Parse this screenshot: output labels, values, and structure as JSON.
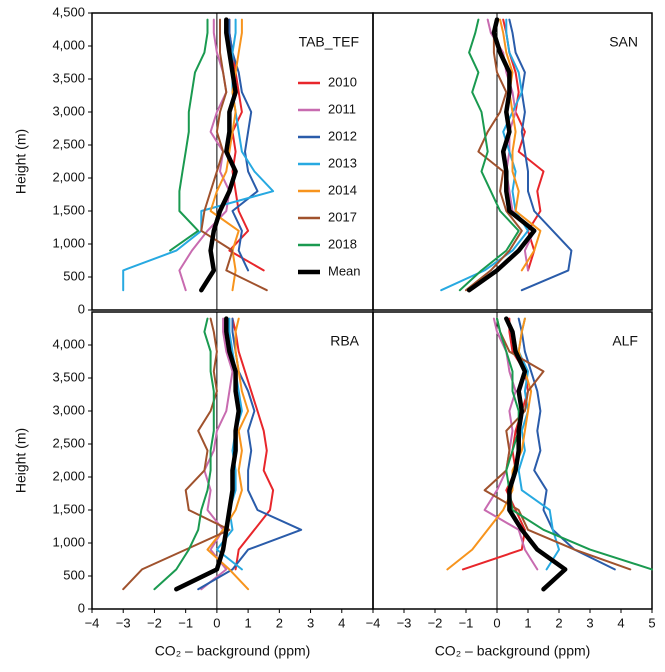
{
  "chart_data": [
    {
      "type": "line",
      "title": "TAB_TEF",
      "ylabel": "Height (m)",
      "legend": "upper right",
      "xlim": [
        -4,
        5
      ],
      "ylim": [
        0,
        4500
      ],
      "yticks": [
        0,
        500,
        {
          "value": 1000,
          "label": "1,000"
        },
        {
          "value": 1500,
          "label": "1,500"
        },
        {
          "value": 2000,
          "label": "2,000"
        },
        {
          "value": 2500,
          "label": "2,500"
        },
        {
          "value": 3000,
          "label": "3,000"
        },
        {
          "value": 3500,
          "label": "3,500"
        },
        {
          "value": 4000,
          "label": "4,000"
        },
        {
          "value": 4500,
          "label": "4,500"
        }
      ],
      "y": [
        300,
        600,
        900,
        1200,
        1500,
        1800,
        2100,
        2400,
        2700,
        3000,
        3300,
        3600,
        3900,
        4200,
        4400
      ],
      "series": [
        {
          "name": "2010",
          "color": "#e8262b",
          "values": [
            null,
            1.5,
            0.4,
            1.0,
            0.7,
            0.6,
            0.5,
            0.6,
            0.5,
            0.8,
            0.7,
            0.6,
            0.5,
            0.4,
            0.4
          ]
        },
        {
          "name": "2011",
          "color": "#c86bb0",
          "values": [
            -1.0,
            -1.2,
            -0.8,
            -0.3,
            0.3,
            0.4,
            0.1,
            0.2,
            -0.2,
            0.0,
            0.3,
            0.2,
            0.0,
            -0.1,
            -0.1
          ]
        },
        {
          "name": "2012",
          "color": "#2a5caa",
          "values": [
            null,
            1.0,
            0.7,
            0.8,
            0.5,
            1.3,
            1.0,
            0.9,
            1.0,
            1.1,
            0.8,
            0.7,
            0.5,
            0.4,
            0.4
          ]
        },
        {
          "name": "2013",
          "color": "#27a9e1",
          "values": [
            -3.0,
            -3.0,
            -1.3,
            -0.5,
            -0.5,
            1.8,
            1.2,
            0.8,
            0.7,
            0.6,
            0.5,
            0.5,
            0.5,
            0.6,
            0.6
          ]
        },
        {
          "name": "2014",
          "color": "#f7941d",
          "values": [
            0.5,
            0.6,
            0.5,
            0.7,
            -0.2,
            0.0,
            0.3,
            0.4,
            0.5,
            0.6,
            0.5,
            0.6,
            0.7,
            0.8,
            0.8
          ]
        },
        {
          "name": "2017",
          "color": "#a0522d",
          "values": [
            1.6,
            0.3,
            0.5,
            -0.5,
            -0.4,
            -0.2,
            0.0,
            0.2,
            0.0,
            0.1,
            0.3,
            0.2,
            0.1,
            0.1,
            0.1
          ]
        },
        {
          "name": "2018",
          "color": "#1a9a50",
          "values": [
            null,
            null,
            -1.5,
            -0.6,
            -1.2,
            -1.2,
            -1.1,
            -1.0,
            -0.9,
            -0.9,
            -0.8,
            -0.7,
            -0.4,
            -0.3,
            -0.3
          ]
        },
        {
          "name": "Mean",
          "color": "#000000",
          "values": [
            -0.5,
            -0.1,
            -0.2,
            -0.1,
            0.1,
            0.4,
            0.6,
            0.3,
            0.4,
            0.4,
            0.6,
            0.5,
            0.4,
            0.3,
            0.3
          ]
        }
      ]
    },
    {
      "type": "line",
      "title": "SAN",
      "xlim": [
        -4,
        5
      ],
      "ylim": [
        0,
        4500
      ],
      "y": [
        300,
        600,
        900,
        1200,
        1500,
        1800,
        2100,
        2400,
        2700,
        3000,
        3300,
        3600,
        3900,
        4200,
        4400
      ],
      "series": [
        {
          "color": "#e8262b",
          "values": [
            null,
            1.0,
            1.2,
            1.0,
            1.4,
            1.3,
            1.5,
            0.7,
            0.9,
            0.6,
            0.7,
            0.6,
            0.4,
            0.3,
            0.2
          ]
        },
        {
          "color": "#c86bb0",
          "values": [
            null,
            1.0,
            0.9,
            1.2,
            0.5,
            0.4,
            0.3,
            0.4,
            0.4,
            0.6,
            0.5,
            0.3,
            0.2,
            -0.2,
            -0.3
          ]
        },
        {
          "color": "#2a5caa",
          "values": [
            0.8,
            2.3,
            2.4,
            1.8,
            1.2,
            1.0,
            1.0,
            0.9,
            0.8,
            0.9,
            0.8,
            0.9,
            0.6,
            0.5,
            0.4
          ]
        },
        {
          "color": "#27a9e1",
          "values": [
            -1.8,
            -0.4,
            0.5,
            1.0,
            0.6,
            0.5,
            0.6,
            0.4,
            0.2,
            0.5,
            0.8,
            0.7,
            0.4,
            0.3,
            0.3
          ]
        },
        {
          "color": "#f7941d",
          "values": [
            null,
            0.8,
            1.2,
            1.4,
            0.6,
            0.7,
            0.5,
            0.5,
            0.6,
            0.5,
            0.4,
            0.5,
            0.3,
            0.2,
            0.1
          ]
        },
        {
          "color": "#a0522d",
          "values": [
            -1.0,
            -0.2,
            0.4,
            0.8,
            0.3,
            0.1,
            0.2,
            -0.6,
            -0.3,
            0.1,
            0.3,
            0.0,
            -0.1,
            -0.1,
            0.0
          ]
        },
        {
          "color": "#1a9a50",
          "values": [
            -1.2,
            -0.5,
            0.3,
            0.7,
            0.1,
            -0.2,
            -0.5,
            -0.3,
            -0.4,
            -0.5,
            -0.8,
            -0.6,
            -0.9,
            -0.7,
            -0.6
          ]
        },
        {
          "color": "#000000",
          "values": [
            -0.9,
            0.0,
            0.7,
            1.2,
            0.4,
            0.3,
            0.3,
            0.2,
            0.4,
            0.3,
            0.4,
            0.4,
            0.1,
            -0.1,
            0.0
          ]
        }
      ]
    },
    {
      "type": "line",
      "title": "RBA",
      "ylabel": "Height (m)",
      "xlabel": "CO₂ – background (ppm)",
      "xlim": [
        -4,
        5
      ],
      "ylim": [
        0,
        4500
      ],
      "xticks": [
        {
          "value": -4,
          "label": "−4"
        },
        {
          "value": -3,
          "label": "−3"
        },
        {
          "value": -2,
          "label": "−2"
        },
        {
          "value": -1,
          "label": "−1"
        },
        0,
        1,
        2,
        3,
        4
      ],
      "yticks": [
        0,
        500,
        {
          "value": 1000,
          "label": "1,000"
        },
        {
          "value": 1500,
          "label": "1,500"
        },
        {
          "value": 2000,
          "label": "2,000"
        },
        {
          "value": 2500,
          "label": "2,500"
        },
        {
          "value": 3000,
          "label": "3,000"
        },
        {
          "value": 3500,
          "label": "3,500"
        },
        {
          "value": 4000,
          "label": "4,000"
        }
      ],
      "y": [
        300,
        600,
        900,
        1200,
        1500,
        1800,
        2100,
        2400,
        2700,
        3000,
        3300,
        3600,
        3900,
        4200,
        4400
      ],
      "series": [
        {
          "color": "#e8262b",
          "values": [
            null,
            0.6,
            0.7,
            1.2,
            1.7,
            1.8,
            1.5,
            1.6,
            1.5,
            1.3,
            1.1,
            0.9,
            0.7,
            0.6,
            0.5
          ]
        },
        {
          "color": "#c86bb0",
          "values": [
            -0.5,
            0.3,
            -0.2,
            0.2,
            -0.3,
            -0.2,
            -0.4,
            -0.1,
            0.0,
            0.3,
            0.4,
            0.5,
            0.3,
            0.2,
            0.2
          ]
        },
        {
          "color": "#2a5caa",
          "values": [
            -0.6,
            0.5,
            1.0,
            2.7,
            1.3,
            1.0,
            1.0,
            1.1,
            1.0,
            1.2,
            1.0,
            0.7,
            0.6,
            0.5,
            0.5
          ]
        },
        {
          "color": "#27a9e1",
          "values": [
            null,
            0.8,
            0.0,
            0.5,
            0.4,
            0.6,
            0.6,
            0.5,
            0.6,
            0.8,
            0.7,
            0.6,
            0.5,
            0.4,
            0.4
          ]
        },
        {
          "color": "#f7941d",
          "values": [
            1.0,
            0.4,
            -0.3,
            0.2,
            0.6,
            0.8,
            0.7,
            0.8,
            0.7,
            1.0,
            0.8,
            0.7,
            0.6,
            0.6,
            0.7
          ]
        },
        {
          "color": "#a0522d",
          "values": [
            -3.0,
            -2.4,
            -1.0,
            0.4,
            -0.9,
            -1.0,
            -0.4,
            -0.3,
            -0.6,
            -0.2,
            0.0,
            -0.1,
            0.0,
            -0.1,
            -0.2
          ]
        },
        {
          "color": "#1a9a50",
          "values": [
            -2.0,
            -1.3,
            -0.9,
            -0.6,
            -0.5,
            -0.3,
            -0.2,
            -0.2,
            -0.1,
            -0.1,
            -0.1,
            -0.2,
            -0.2,
            -0.4,
            -0.3
          ]
        },
        {
          "color": "#000000",
          "values": [
            -1.3,
            0.0,
            0.2,
            0.3,
            0.4,
            0.5,
            0.5,
            0.6,
            0.6,
            0.7,
            0.6,
            0.6,
            0.4,
            0.3,
            0.3
          ]
        }
      ]
    },
    {
      "type": "line",
      "title": "ALF",
      "xlabel": "CO₂ – background (ppm)",
      "xlim": [
        -4,
        5
      ],
      "ylim": [
        0,
        4500
      ],
      "xticks": [
        {
          "value": -4,
          "label": "−4"
        },
        {
          "value": -3,
          "label": "−3"
        },
        {
          "value": -2,
          "label": "−2"
        },
        {
          "value": -1,
          "label": "−1"
        },
        0,
        1,
        2,
        3,
        4,
        5
      ],
      "y": [
        300,
        600,
        900,
        1200,
        1500,
        1800,
        2100,
        2400,
        2700,
        3000,
        3300,
        3600,
        3900,
        4200,
        4400
      ],
      "series": [
        {
          "color": "#e8262b",
          "values": [
            null,
            -1.1,
            0.8,
            0.9,
            0.6,
            0.3,
            0.6,
            0.5,
            0.6,
            0.8,
            1.0,
            0.9,
            0.5,
            0.4,
            0.4
          ]
        },
        {
          "color": "#c86bb0",
          "values": [
            null,
            1.3,
            0.9,
            0.7,
            -0.4,
            0.0,
            0.3,
            0.4,
            0.5,
            0.4,
            0.6,
            0.4,
            0.3,
            0.0,
            -0.1
          ]
        },
        {
          "color": "#2a5caa",
          "values": [
            null,
            3.8,
            2.5,
            1.8,
            1.5,
            1.6,
            1.2,
            1.4,
            1.3,
            1.4,
            1.3,
            1.1,
            0.9,
            0.8,
            0.7
          ]
        },
        {
          "color": "#27a9e1",
          "values": [
            null,
            1.6,
            2.0,
            1.8,
            1.7,
            0.8,
            0.7,
            0.9,
            0.8,
            1.0,
            0.9,
            1.0,
            0.7,
            0.8,
            0.9
          ]
        },
        {
          "color": "#f7941d",
          "values": [
            null,
            -1.6,
            -0.8,
            -0.3,
            0.2,
            0.5,
            0.5,
            0.8,
            0.9,
            1.0,
            1.1,
            0.9,
            0.7,
            0.8,
            0.9
          ]
        },
        {
          "color": "#a0522d",
          "values": [
            null,
            4.3,
            2.5,
            1.0,
            0.7,
            -0.4,
            0.3,
            0.4,
            0.3,
            0.9,
            1.0,
            1.5,
            0.4,
            0.1,
            0.0
          ]
        },
        {
          "color": "#1a9a50",
          "values": [
            null,
            5.0,
            3.0,
            1.5,
            0.5,
            0.4,
            0.3,
            0.5,
            0.7,
            0.7,
            0.5,
            0.5,
            0.3,
            0.1,
            0.0
          ]
        },
        {
          "color": "#000000",
          "values": [
            1.5,
            2.2,
            1.3,
            0.8,
            0.4,
            0.4,
            0.6,
            0.7,
            0.7,
            0.8,
            0.7,
            0.9,
            0.6,
            0.5,
            0.3
          ]
        }
      ]
    }
  ]
}
